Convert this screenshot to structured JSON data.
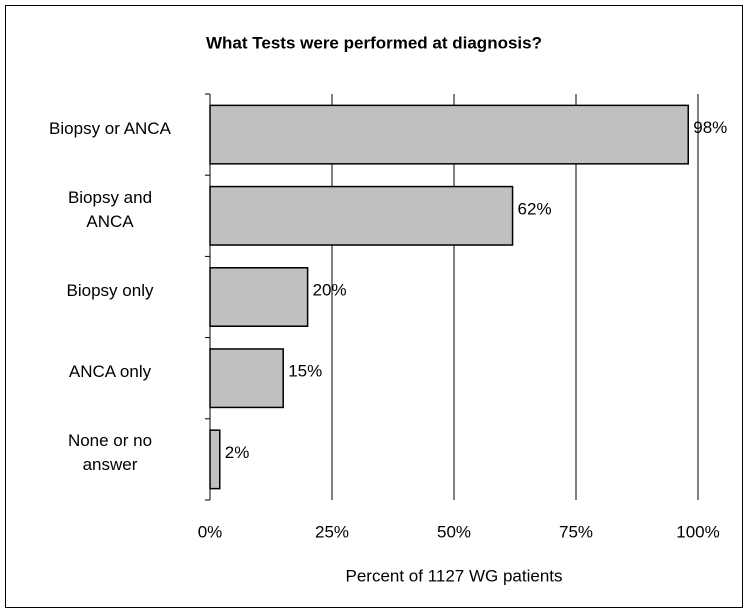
{
  "chart_data": {
    "type": "bar",
    "orientation": "horizontal",
    "title": "What Tests were performed at diagnosis?",
    "categories": [
      "Biopsy or ANCA",
      "Biopsy and\nANCA",
      "Biopsy only",
      "ANCA only",
      "None or no\nanswer"
    ],
    "values": [
      98,
      62,
      20,
      15,
      2
    ],
    "value_labels": [
      "98%",
      "62%",
      "20%",
      "15%",
      "2%"
    ],
    "color": "#c0c0c0",
    "xlabel": "Percent of 1127 WG patients",
    "xlim": [
      0,
      100
    ],
    "xticks": [
      {
        "value": 0,
        "label": "0%"
      },
      {
        "value": 25,
        "label": "25%"
      },
      {
        "value": 50,
        "label": "50%"
      },
      {
        "value": 75,
        "label": "75%"
      },
      {
        "value": 100,
        "label": "100%"
      }
    ],
    "grid": true
  }
}
